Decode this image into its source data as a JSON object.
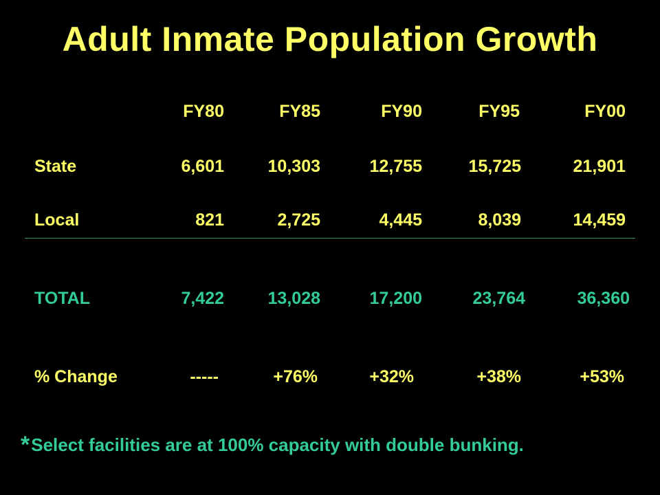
{
  "title": "Adult Inmate Population Growth",
  "columns": [
    "FY80",
    "FY85",
    "FY90",
    "FY95",
    "FY00"
  ],
  "rows": {
    "state": {
      "label": "State",
      "values": [
        "6,601",
        "10,303",
        "12,755",
        "15,725",
        "21,901"
      ]
    },
    "local": {
      "label": "Local",
      "values": [
        "821",
        "2,725",
        "4,445",
        "8,039",
        "14,459"
      ]
    },
    "total": {
      "label": "TOTAL",
      "values": [
        "7,422",
        "13,028",
        "17,200",
        "23,764",
        "36,360"
      ]
    },
    "change": {
      "label": "% Change",
      "values": [
        "-----",
        "+76%",
        "+32%",
        "+38%",
        "+53%"
      ]
    }
  },
  "footnote": {
    "marker": "*",
    "text": "Select facilities are at 100% capacity with double bunking."
  },
  "colors": {
    "background": "#000000",
    "primary_text": "#FFFF66",
    "accent_text": "#33CC99",
    "divider": "#2E8B57"
  }
}
